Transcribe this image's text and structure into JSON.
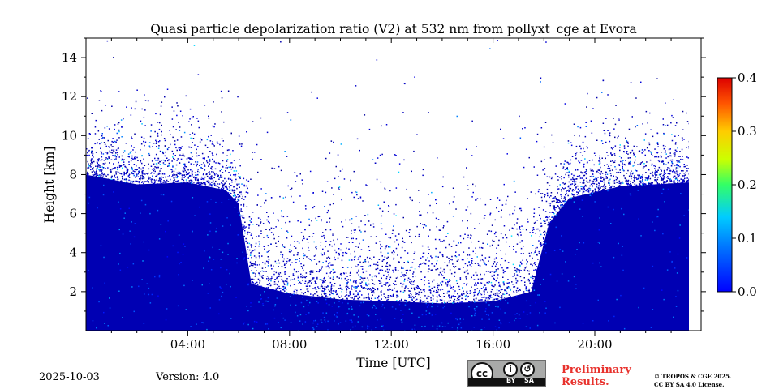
{
  "chart_data": {
    "type": "heatmap",
    "title": "Quasi particle depolarization ratio (V2) at 532 nm from pollyxt_cge at Evora",
    "xlabel": "Time [UTC]",
    "ylabel": "Height [km]",
    "xlim": [
      0,
      23.7
    ],
    "ylim": [
      0,
      15
    ],
    "xticks": [
      4,
      8,
      12,
      16,
      20
    ],
    "xtick_labels": [
      "04:00",
      "08:00",
      "12:00",
      "16:00",
      "20:00"
    ],
    "yticks": [
      2,
      4,
      6,
      8,
      10,
      12,
      14
    ],
    "ytick_labels": [
      "2",
      "4",
      "6",
      "8",
      "10",
      "12",
      "14"
    ],
    "colorbar": {
      "min": 0.0,
      "max": 0.4,
      "ticks": [
        0.0,
        0.1,
        0.2,
        0.3,
        0.4
      ],
      "tick_labels": [
        "0.0",
        "0.1",
        "0.2",
        "0.3",
        "0.4"
      ],
      "colormap": "jet"
    },
    "main_value": 0.02,
    "cloud_base_km": [
      [
        0,
        8.0
      ],
      [
        2,
        7.5
      ],
      [
        4,
        7.6
      ],
      [
        5.5,
        7.2
      ],
      [
        6,
        6.5
      ],
      [
        6.5,
        2.4
      ],
      [
        8,
        1.9
      ],
      [
        10,
        1.6
      ],
      [
        12,
        1.5
      ],
      [
        14,
        1.4
      ],
      [
        16,
        1.5
      ],
      [
        17.5,
        2.0
      ],
      [
        18.2,
        5.5
      ],
      [
        19,
        6.8
      ],
      [
        21,
        7.4
      ],
      [
        23.7,
        7.6
      ]
    ]
  },
  "footer": {
    "date": "2025-10-03",
    "version": "Version: 4.0",
    "license_badge": {
      "main": "cc",
      "by": "BY",
      "sa": "SA"
    },
    "preliminary_line1": "Preliminary",
    "preliminary_line2": "Results.",
    "copyright_line1": "© TROPOS & CGE 2025.",
    "copyright_line2": "CC BY SA 4.0 License."
  }
}
